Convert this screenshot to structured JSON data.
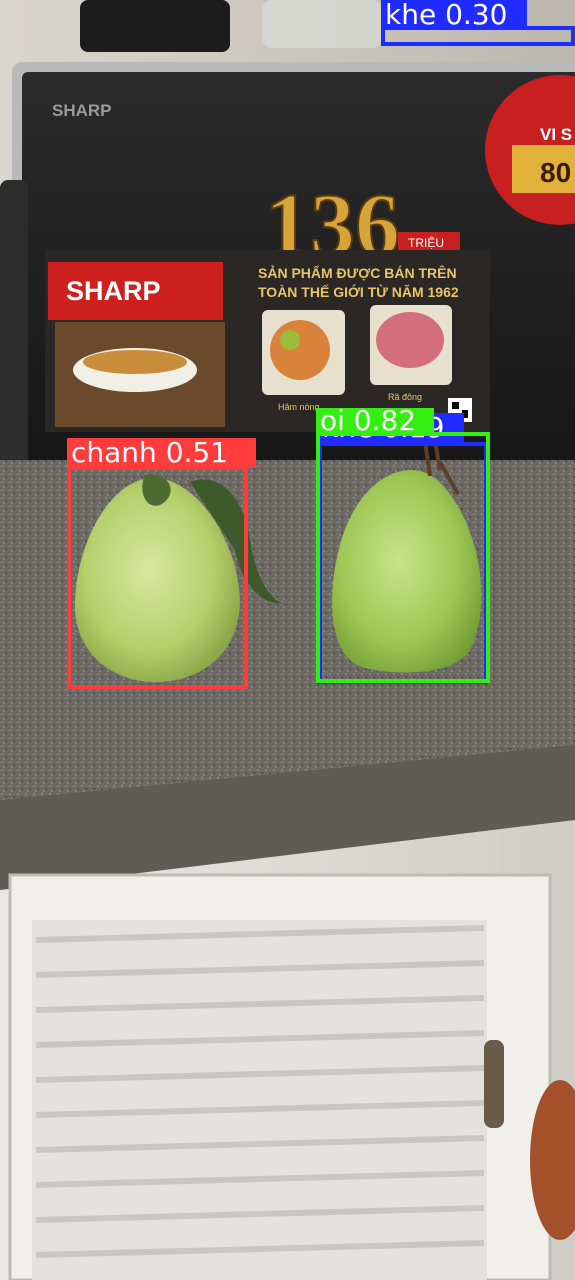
{
  "scene": {
    "microwave_brand": "SHARP",
    "poster": {
      "brand": "SHARP",
      "headline_line1": "SẢN PHẨM ĐƯỢC BÁN TRÊN",
      "headline_line2": "TOÀN THẾ GIỚI TỪ NĂM 1962",
      "big_number": "136",
      "big_number_unit": "TRIỆU",
      "caption_left": "Hâm nóng",
      "caption_right": "Rã đông"
    },
    "badge_text": "VI S",
    "badge_number": "80"
  },
  "detections": [
    {
      "name": "chanh",
      "label": "chanh 0.51",
      "confidence": 0.51,
      "color": "#ff3b3b"
    },
    {
      "name": "khe-1",
      "label": "khe 0.19",
      "confidence": 0.19,
      "color": "#1f2bff"
    },
    {
      "name": "oi",
      "label": "oi 0.82",
      "confidence": 0.82,
      "color": "#33ee10"
    },
    {
      "name": "khe-2",
      "label": "khe 0.30",
      "confidence": 0.3,
      "color": "#1f2bff"
    }
  ]
}
